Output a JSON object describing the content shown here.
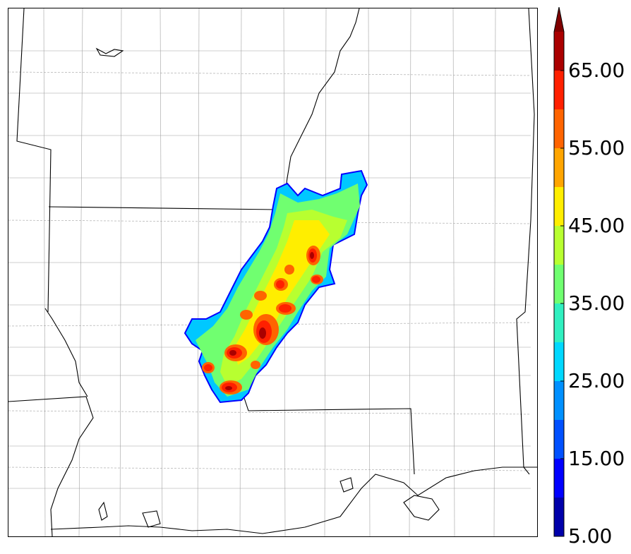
{
  "colorbar": {
    "levels": [
      5,
      10,
      15,
      20,
      25,
      30,
      35,
      40,
      45,
      50,
      55,
      60,
      65,
      70
    ],
    "colors": [
      "#0000aa",
      "#0000ff",
      "#0050ff",
      "#0090ff",
      "#00d8ff",
      "#30f0c0",
      "#70ff70",
      "#b8ff30",
      "#ffee00",
      "#ffa500",
      "#ff6400",
      "#ff2000",
      "#aa0000"
    ],
    "extend_color": "#800000",
    "tick_labels": [
      {
        "value": 5,
        "text": "5.00"
      },
      {
        "value": 15,
        "text": "15.00"
      },
      {
        "value": 25,
        "text": "25.00"
      },
      {
        "value": 35,
        "text": "35.00"
      },
      {
        "value": 45,
        "text": "45.00"
      },
      {
        "value": 55,
        "text": "55.00"
      },
      {
        "value": 65,
        "text": "65.00"
      }
    ]
  },
  "map": {
    "colors": {
      "state_border": "#000000",
      "county_border": "#9a9a9a",
      "water": "#000000"
    }
  }
}
